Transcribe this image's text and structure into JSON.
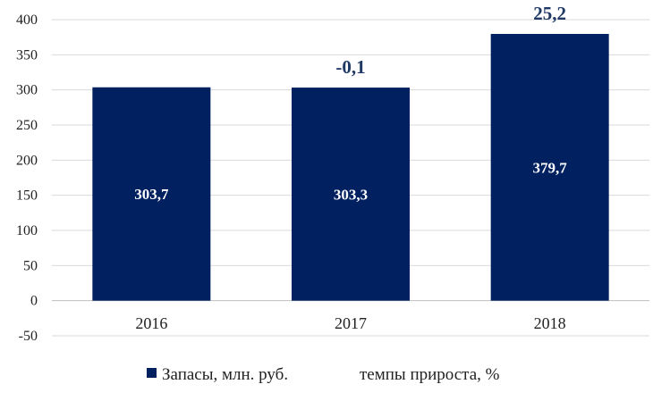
{
  "chart_data": {
    "type": "bar",
    "categories": [
      "2016",
      "2017",
      "2018"
    ],
    "series": [
      {
        "name": "Запасы, млн. руб.",
        "values": [
          303.7,
          303.3,
          379.7
        ],
        "labels": [
          "303,7",
          "303,3",
          "379,7"
        ],
        "color": "#002060"
      },
      {
        "name": "темпы прироста, %",
        "values": [
          null,
          -0.1,
          25.2
        ],
        "labels": [
          "",
          "-0,1",
          "25,2"
        ],
        "color": "#1f3864"
      }
    ],
    "yticks": [
      "-50",
      "0",
      "50",
      "100",
      "150",
      "200",
      "250",
      "300",
      "350",
      "400"
    ],
    "ylim": [
      -50,
      400
    ],
    "grid": true,
    "legend": "bottom"
  }
}
